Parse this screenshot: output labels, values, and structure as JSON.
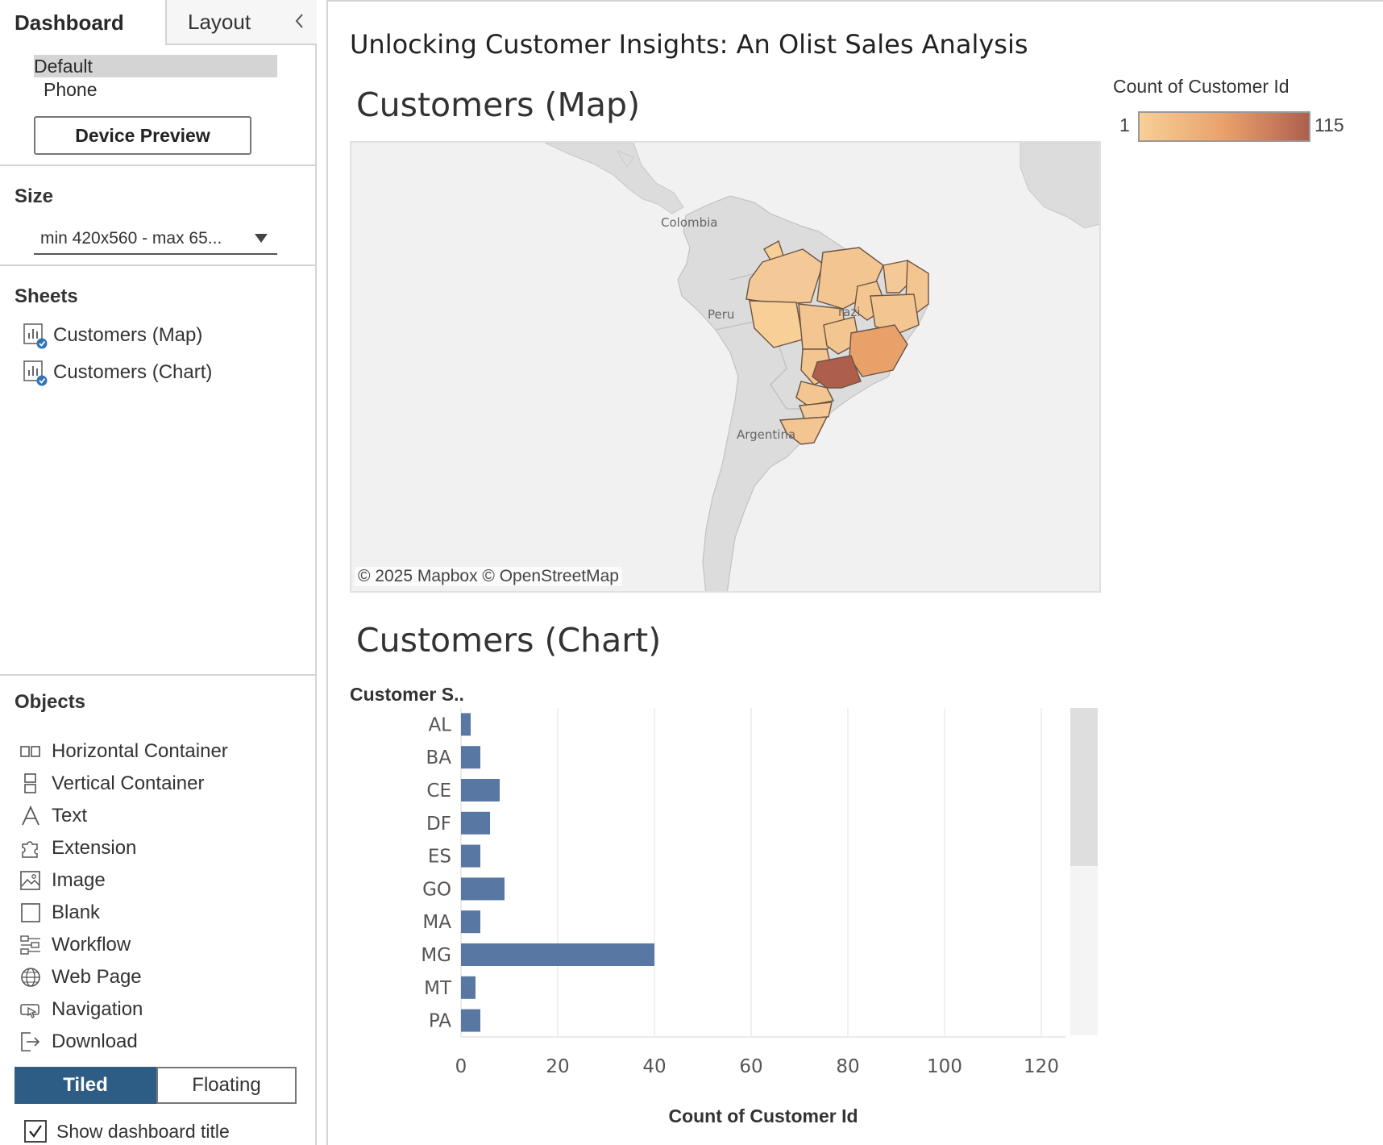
{
  "left_panel": {
    "tabs": {
      "dashboard": "Dashboard",
      "layout": "Layout"
    },
    "devices": {
      "default": "Default",
      "phone": "Phone"
    },
    "device_preview_label": "Device Preview",
    "size": {
      "heading": "Size",
      "value": "min 420x560 - max 65..."
    },
    "sheets": {
      "heading": "Sheets",
      "items": [
        "Customers (Map)",
        "Customers (Chart)"
      ]
    },
    "objects": {
      "heading": "Objects",
      "items": [
        "Horizontal Container",
        "Vertical Container",
        "Text",
        "Extension",
        "Image",
        "Blank",
        "Workflow",
        "Web Page",
        "Navigation",
        "Download"
      ]
    },
    "mode": {
      "tiled": "Tiled",
      "floating": "Floating"
    },
    "show_title": {
      "label": "Show dashboard title",
      "checked": true
    }
  },
  "dashboard": {
    "title": "Unlocking Customer Insights: An Olist Sales Analysis",
    "map_sheet": {
      "title": "Customers (Map)",
      "labels": {
        "colombia": "Colombia",
        "peru": "Peru",
        "brazil": "razi",
        "argentina": "Argentina"
      },
      "attribution": "© 2025 Mapbox  © OpenStreetMap",
      "legend": {
        "title": "Count of Customer Id",
        "min": "1",
        "max": "115",
        "low_color": "#f7cf97",
        "high_color": "#ad5f4c"
      }
    },
    "chart_sheet": {
      "title": "Customers (Chart)"
    }
  },
  "chart_data": {
    "type": "bar",
    "orientation": "horizontal",
    "title": "Customers (Chart)",
    "category_header": "Customer S..",
    "categories": [
      "AL",
      "BA",
      "CE",
      "DF",
      "ES",
      "GO",
      "MA",
      "MG",
      "MT",
      "PA"
    ],
    "values": [
      2,
      4,
      8,
      6,
      4,
      9,
      4,
      40,
      3,
      4
    ],
    "xlabel": "Count of Customer Id",
    "xlim": [
      0,
      125
    ],
    "ticks": [
      0,
      20,
      40,
      60,
      80,
      100,
      120
    ],
    "bar_color": "#5878a3",
    "grid": true
  }
}
